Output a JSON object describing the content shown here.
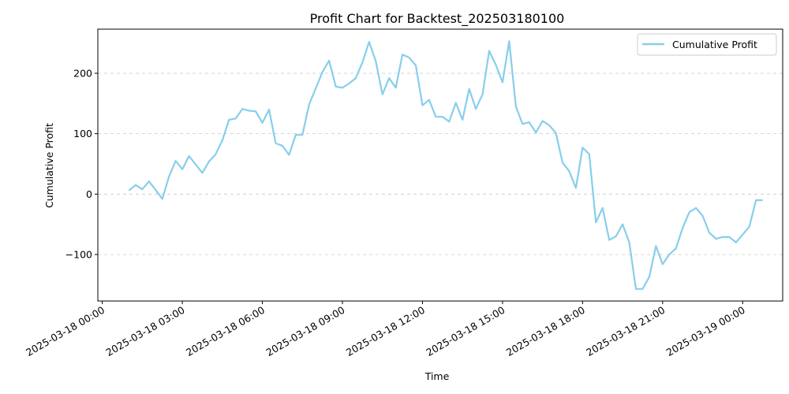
{
  "chart_data": {
    "type": "line",
    "title": "Profit Chart for Backtest_202503180100",
    "xlabel": "Time",
    "ylabel": "Cumulative Profit",
    "legend_position": "top-right",
    "grid": "horizontal dashed",
    "xlim": [
      "2025-03-17 23:50",
      "2025-03-19 01:30"
    ],
    "ylim": [
      -177,
      273
    ],
    "x_ticks": [
      {
        "label": "2025-03-18 00:00",
        "t": "2025-03-18 00:00"
      },
      {
        "label": "2025-03-18 03:00",
        "t": "2025-03-18 03:00"
      },
      {
        "label": "2025-03-18 06:00",
        "t": "2025-03-18 06:00"
      },
      {
        "label": "2025-03-18 09:00",
        "t": "2025-03-18 09:00"
      },
      {
        "label": "2025-03-18 12:00",
        "t": "2025-03-18 12:00"
      },
      {
        "label": "2025-03-18 15:00",
        "t": "2025-03-18 15:00"
      },
      {
        "label": "2025-03-18 18:00",
        "t": "2025-03-18 18:00"
      },
      {
        "label": "2025-03-18 21:00",
        "t": "2025-03-18 21:00"
      },
      {
        "label": "2025-03-19 00:00",
        "t": "2025-03-19 00:00"
      }
    ],
    "y_ticks": [
      {
        "label": "−100",
        "value": -100
      },
      {
        "label": "0",
        "value": 0
      },
      {
        "label": "100",
        "value": 100
      },
      {
        "label": "200",
        "value": 200
      }
    ],
    "series": [
      {
        "name": "Cumulative Profit",
        "color": "#87ceeb",
        "points": [
          [
            "2025-03-18 01:00",
            6
          ],
          [
            "2025-03-18 01:15",
            15
          ],
          [
            "2025-03-18 01:30",
            8
          ],
          [
            "2025-03-18 01:45",
            21
          ],
          [
            "2025-03-18 02:00",
            7
          ],
          [
            "2025-03-18 02:15",
            -8
          ],
          [
            "2025-03-18 02:30",
            29
          ],
          [
            "2025-03-18 02:45",
            55
          ],
          [
            "2025-03-18 03:00",
            41
          ],
          [
            "2025-03-18 03:15",
            63
          ],
          [
            "2025-03-18 03:30",
            49
          ],
          [
            "2025-03-18 03:45",
            35
          ],
          [
            "2025-03-18 04:00",
            54
          ],
          [
            "2025-03-18 04:15",
            66
          ],
          [
            "2025-03-18 04:30",
            89
          ],
          [
            "2025-03-18 04:45",
            123
          ],
          [
            "2025-03-18 05:00",
            125
          ],
          [
            "2025-03-18 05:15",
            141
          ],
          [
            "2025-03-18 05:30",
            138
          ],
          [
            "2025-03-18 05:45",
            137
          ],
          [
            "2025-03-18 06:00",
            118
          ],
          [
            "2025-03-18 06:15",
            140
          ],
          [
            "2025-03-18 06:30",
            84
          ],
          [
            "2025-03-18 06:45",
            80
          ],
          [
            "2025-03-18 07:00",
            65
          ],
          [
            "2025-03-18 07:15",
            98
          ],
          [
            "2025-03-18 07:30",
            98
          ],
          [
            "2025-03-18 07:45",
            148
          ],
          [
            "2025-03-18 08:00",
            175
          ],
          [
            "2025-03-18 08:15",
            202
          ],
          [
            "2025-03-18 08:30",
            221
          ],
          [
            "2025-03-18 08:45",
            178
          ],
          [
            "2025-03-18 09:00",
            176
          ],
          [
            "2025-03-18 09:15",
            183
          ],
          [
            "2025-03-18 09:30",
            192
          ],
          [
            "2025-03-18 09:45",
            218
          ],
          [
            "2025-03-18 10:00",
            252
          ],
          [
            "2025-03-18 10:15",
            220
          ],
          [
            "2025-03-18 10:30",
            165
          ],
          [
            "2025-03-18 10:45",
            192
          ],
          [
            "2025-03-18 11:00",
            176
          ],
          [
            "2025-03-18 11:15",
            231
          ],
          [
            "2025-03-18 11:30",
            226
          ],
          [
            "2025-03-18 11:45",
            213
          ],
          [
            "2025-03-18 12:00",
            147
          ],
          [
            "2025-03-18 12:15",
            156
          ],
          [
            "2025-03-18 12:30",
            128
          ],
          [
            "2025-03-18 12:45",
            128
          ],
          [
            "2025-03-18 13:00",
            120
          ],
          [
            "2025-03-18 13:15",
            151
          ],
          [
            "2025-03-18 13:30",
            123
          ],
          [
            "2025-03-18 13:45",
            174
          ],
          [
            "2025-03-18 14:00",
            141
          ],
          [
            "2025-03-18 14:15",
            165
          ],
          [
            "2025-03-18 14:30",
            237
          ],
          [
            "2025-03-18 14:45",
            214
          ],
          [
            "2025-03-18 15:00",
            185
          ],
          [
            "2025-03-18 15:15",
            253
          ],
          [
            "2025-03-18 15:30",
            145
          ],
          [
            "2025-03-18 15:45",
            116
          ],
          [
            "2025-03-18 16:00",
            119
          ],
          [
            "2025-03-18 16:15",
            102
          ],
          [
            "2025-03-18 16:30",
            121
          ],
          [
            "2025-03-18 16:45",
            114
          ],
          [
            "2025-03-18 17:00",
            101
          ],
          [
            "2025-03-18 17:15",
            52
          ],
          [
            "2025-03-18 17:30",
            38
          ],
          [
            "2025-03-18 17:45",
            10
          ],
          [
            "2025-03-18 18:00",
            77
          ],
          [
            "2025-03-18 18:15",
            66
          ],
          [
            "2025-03-18 18:30",
            -47
          ],
          [
            "2025-03-18 18:45",
            -23
          ],
          [
            "2025-03-18 19:00",
            -76
          ],
          [
            "2025-03-18 19:15",
            -70
          ],
          [
            "2025-03-18 19:30",
            -50
          ],
          [
            "2025-03-18 19:45",
            -80
          ],
          [
            "2025-03-18 20:00",
            -157
          ],
          [
            "2025-03-18 20:15",
            -157
          ],
          [
            "2025-03-18 20:30",
            -137
          ],
          [
            "2025-03-18 20:45",
            -86
          ],
          [
            "2025-03-18 21:00",
            -116
          ],
          [
            "2025-03-18 21:15",
            -100
          ],
          [
            "2025-03-18 21:30",
            -90
          ],
          [
            "2025-03-18 21:45",
            -56
          ],
          [
            "2025-03-18 22:00",
            -30
          ],
          [
            "2025-03-18 22:15",
            -23
          ],
          [
            "2025-03-18 22:30",
            -36
          ],
          [
            "2025-03-18 22:45",
            -64
          ],
          [
            "2025-03-18 23:00",
            -74
          ],
          [
            "2025-03-18 23:15",
            -71
          ],
          [
            "2025-03-18 23:30",
            -71
          ],
          [
            "2025-03-18 23:45",
            -80
          ],
          [
            "2025-03-19 00:00",
            -67
          ],
          [
            "2025-03-19 00:15",
            -54
          ],
          [
            "2025-03-19 00:30",
            -10
          ],
          [
            "2025-03-19 00:45",
            -10
          ]
        ]
      }
    ]
  }
}
